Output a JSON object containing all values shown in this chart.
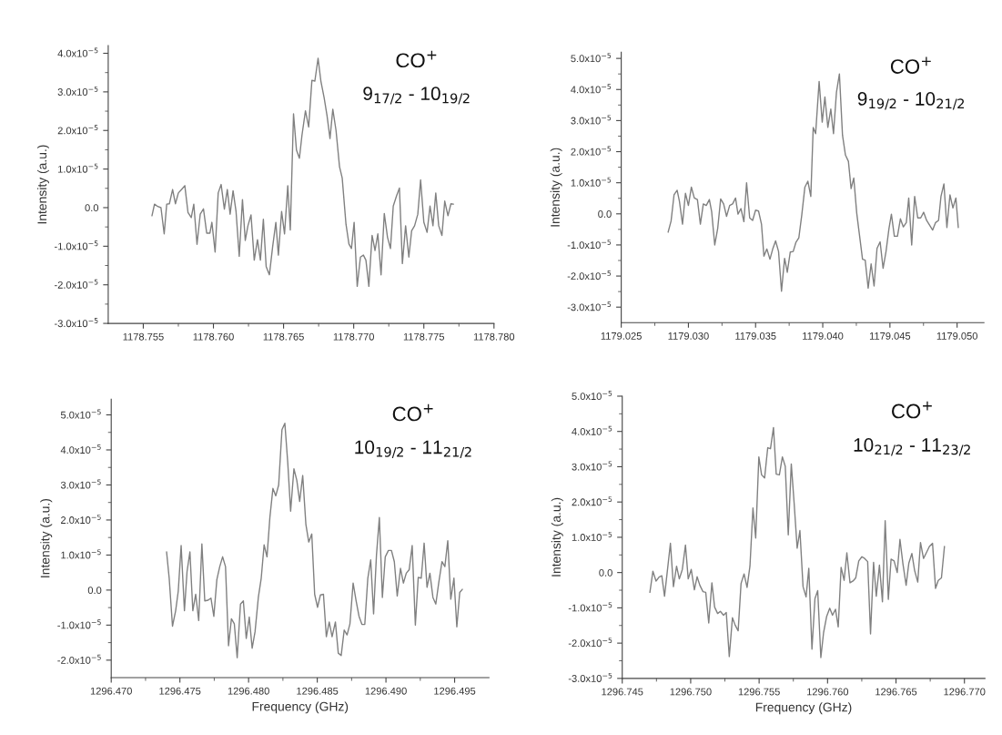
{
  "chart_data": [
    {
      "type": "line",
      "ylabel": "Intensity (a.u.)",
      "annotations": [
        "CO$^{+}$",
        "9$_{17/2}$ - 10$_{19/2}$"
      ],
      "xlim": [
        1178.7525,
        1178.78
      ],
      "xticks": [
        {
          "value": 1178.755,
          "label": "1178.755"
        },
        {
          "value": 1178.76,
          "label": "1178.760"
        },
        {
          "value": 1178.765,
          "label": "1178.765"
        },
        {
          "value": 1178.77,
          "label": "1178.770"
        },
        {
          "value": 1178.775,
          "label": "1178.775"
        },
        {
          "value": 1178.78,
          "label": "1178.780"
        }
      ],
      "ylim": [
        -3e-05,
        4.2e-05
      ],
      "yticks": [
        {
          "value": -3e-05,
          "label": "-3.0x10$^{−5}$"
        },
        {
          "value": -2e-05,
          "label": "-2.0x10$^{−5}$"
        },
        {
          "value": -1e-05,
          "label": "-1.0x10$^{−5}$"
        },
        {
          "value": 0,
          "label": "0.0"
        },
        {
          "value": 1e-05,
          "label": "1.0x10$^{−5}$"
        },
        {
          "value": 2e-05,
          "label": "2.0x10$^{−5}$"
        },
        {
          "value": 3e-05,
          "label": "3.0x10$^{−5}$"
        },
        {
          "value": 4e-05,
          "label": "4.0x10$^{−5}$"
        }
      ],
      "x": [
        1178.75562,
        1178.7558,
        1178.75603,
        1178.75626,
        1178.75649,
        1178.75667,
        1178.75686,
        1178.75709,
        1178.75729,
        1178.7575,
        1178.75773,
        1178.75796,
        1178.75819,
        1178.75842,
        1178.7586,
        1178.75883,
        1178.75906,
        1178.75929,
        1178.75952,
        1178.75975,
        1178.75989,
        1178.76012,
        1178.76034,
        1178.76055,
        1178.76078,
        1178.76099,
        1178.76119,
        1178.7614,
        1178.76161,
        1178.76184,
        1178.76207,
        1178.76227,
        1178.76246,
        1178.76268,
        1178.76291,
        1178.76314,
        1178.76335,
        1178.76356,
        1178.76376,
        1178.76399,
        1178.76422,
        1178.76445,
        1178.76463,
        1178.76486,
        1178.76507,
        1178.7653,
        1178.76548,
        1178.76571,
        1178.76592,
        1178.76613,
        1178.76631,
        1178.76656,
        1178.76679,
        1178.76702,
        1178.76723,
        1178.76746,
        1178.76766,
        1178.76789,
        1178.7681,
        1178.76831,
        1178.76851,
        1178.76874,
        1178.76899,
        1178.76918,
        1178.76945,
        1178.76966,
        1178.76984,
        1178.77003,
        1178.77025,
        1178.77048,
        1178.77069,
        1178.77087,
        1178.77108,
        1178.77131,
        1178.77152,
        1178.77172,
        1178.77195,
        1178.77218,
        1178.77241,
        1178.77262,
        1178.77282,
        1178.77305,
        1178.77326,
        1178.77347,
        1178.7737,
        1178.77393,
        1178.77413,
        1178.77434,
        1178.77457,
        1178.77477,
        1178.775,
        1178.77523,
        1178.77544,
        1178.77565,
        1178.77585,
        1178.77606,
        1178.77629,
        1178.77649,
        1178.77672,
        1178.77693,
        1178.77711
      ],
      "series": [
        {
          "color": "#808080",
          "values": [
            -2.1e-06,
            9e-07,
            3e-07,
            0.0,
            -6.8e-06,
            9e-07,
            1e-06,
            4.7e-06,
            1e-06,
            3.8e-06,
            4.7e-06,
            5.7e-06,
            -1.3e-06,
            -2.6e-06,
            9e-07,
            -9.5e-06,
            -1.7e-06,
            -3e-07,
            -6.6e-06,
            -6.6e-06,
            -3.8e-06,
            -1.15e-05,
            3.8e-06,
            6e-06,
            -4e-07,
            4.7e-06,
            -1.7e-06,
            4.4e-06,
            -9e-07,
            -1.26e-05,
            2.1e-06,
            -8.5e-06,
            -4.7e-06,
            -1.9e-06,
            -1.36e-05,
            -8.3e-06,
            -1.36e-05,
            -3e-06,
            -1.53e-05,
            -1.74e-05,
            -1.02e-05,
            -3.8e-06,
            -1.23e-05,
            -1e-06,
            -6.8e-06,
            5.7e-06,
            -5.8e-06,
            2.43e-05,
            1.49e-05,
            1.28e-05,
            1.87e-05,
            2.51e-05,
            2.09e-05,
            3.3e-05,
            3.28e-05,
            3.87e-05,
            3.28e-05,
            2.85e-05,
            2.38e-05,
            1.79e-05,
            2.55e-05,
            2e-05,
            1.06e-05,
            7.7e-06,
            -4.3e-06,
            -9.4e-06,
            -1.06e-05,
            -3.8e-06,
            -2.04e-05,
            -1.28e-05,
            -1.23e-05,
            -1.36e-05,
            -2.04e-05,
            -7.2e-06,
            -1.11e-05,
            -6.8e-06,
            -1.74e-05,
            -1.5e-06,
            -7.7e-06,
            -1.06e-05,
            4e-07,
            3e-06,
            5.1e-06,
            -1.45e-05,
            -4.7e-06,
            -1.28e-05,
            -6e-06,
            -4.7e-06,
            -1.7e-06,
            7.2e-06,
            -3.8e-06,
            -6.4e-06,
            4e-07,
            -4.7e-06,
            3.8e-06,
            -4.7e-06,
            -7.2e-06,
            1.7e-06,
            -2.1e-06,
            1e-06,
            9e-07
          ]
        }
      ]
    },
    {
      "type": "line",
      "ylabel": "Intensity (a.u.)",
      "annotations": [
        "CO$^{+}$",
        "9$_{19/2}$ - 10$_{21/2}$"
      ],
      "xlim": [
        1179.025,
        1179.052
      ],
      "xticks": [
        {
          "value": 1179.025,
          "label": "1179.025"
        },
        {
          "value": 1179.03,
          "label": "1179.030"
        },
        {
          "value": 1179.035,
          "label": "1179.035"
        },
        {
          "value": 1179.04,
          "label": "1179.040"
        },
        {
          "value": 1179.045,
          "label": "1179.045"
        },
        {
          "value": 1179.05,
          "label": "1179.050"
        }
      ],
      "ylim": [
        -3.5e-05,
        5.2e-05
      ],
      "yticks": [
        {
          "value": -3e-05,
          "label": "-3.0x10$^{−5}$"
        },
        {
          "value": -2e-05,
          "label": "-2.0x10$^{−5}$"
        },
        {
          "value": -1e-05,
          "label": "-1.0x10$^{−5}$"
        },
        {
          "value": 0,
          "label": "0.0"
        },
        {
          "value": 1e-05,
          "label": "1.0x10$^{−5}$"
        },
        {
          "value": 2e-05,
          "label": "2.0x10$^{−5}$"
        },
        {
          "value": 3e-05,
          "label": "3.0x10$^{−5}$"
        },
        {
          "value": 4e-05,
          "label": "4.0x10$^{−5}$"
        },
        {
          "value": 5e-05,
          "label": "5.0x10$^{−5}$"
        }
      ],
      "x": [
        1179.02849,
        1179.02871,
        1179.02893,
        1179.02916,
        1179.02933,
        1179.02956,
        1179.02978,
        1179.03,
        1179.03022,
        1179.03044,
        1179.03067,
        1179.03089,
        1179.03111,
        1179.03133,
        1179.03156,
        1179.03173,
        1179.03196,
        1179.03218,
        1179.0324,
        1179.03262,
        1179.03284,
        1179.03307,
        1179.03329,
        1179.03351,
        1179.03369,
        1179.03391,
        1179.03413,
        1179.03433,
        1179.03456,
        1179.03478,
        1179.035,
        1179.03522,
        1179.03544,
        1179.03562,
        1179.03584,
        1179.03607,
        1179.03629,
        1179.03649,
        1179.03671,
        1179.03693,
        1179.03716,
        1179.03736,
        1179.03758,
        1179.0378,
        1179.038,
        1179.03822,
        1179.03844,
        1179.03867,
        1179.03889,
        1179.03911,
        1179.03929,
        1179.03947,
        1179.03973,
        1179.03996,
        1179.04016,
        1179.04038,
        1179.0406,
        1179.0408,
        1179.04102,
        1179.04124,
        1179.04147,
        1179.04169,
        1179.04191,
        1179.04211,
        1179.04231,
        1179.04253,
        1179.04273,
        1179.04296,
        1179.04316,
        1179.04338,
        1179.0436,
        1179.04382,
        1179.04404,
        1179.04427,
        1179.04449,
        1179.04471,
        1179.04493,
        1179.04511,
        1179.04533,
        1179.04556,
        1179.04578,
        1179.046,
        1179.04622,
        1179.0464,
        1179.04662,
        1179.04684,
        1179.04707,
        1179.04729,
        1179.04751,
        1179.04773,
        1179.04796,
        1179.04818,
        1179.0484,
        1179.04862,
        1179.0488,
        1179.04902,
        1179.04924,
        1179.04947,
        1179.04969,
        1179.04991,
        1179.05009
      ],
      "series": [
        {
          "color": "#808080",
          "values": [
            -5.9e-06,
            -2.3e-06,
            6.1e-06,
            7.6e-06,
            4.1e-06,
            -3.3e-06,
            6.6e-06,
            2.7e-06,
            8.6e-06,
            5.1e-06,
            4.6e-06,
            -3.3e-06,
            3.2e-06,
            2.7e-06,
            4.6e-06,
            7e-07,
            -1e-05,
            -4.7e-06,
            4.8e-06,
            3.2e-06,
            -8e-07,
            2.7e-06,
            3.2e-06,
            5.1e-06,
            -1e-07,
            1.7e-06,
            -2.5e-06,
            1e-05,
            -1.3e-06,
            -2.1e-06,
            1.2e-06,
            9e-07,
            -3.3e-06,
            -1.36e-05,
            -1.13e-05,
            -1.46e-05,
            -1.11e-05,
            -8.7e-06,
            -1.21e-05,
            -2.49e-05,
            -1.43e-05,
            -1.88e-05,
            -1.23e-05,
            -1.21e-05,
            -9.2e-06,
            -7.7e-06,
            -3e-07,
            8.6e-06,
            1.05e-05,
            5.6e-06,
            2.78e-05,
            2.58e-05,
            4.26e-05,
            2.95e-05,
            3.76e-05,
            2.78e-05,
            3.37e-05,
            2.58e-05,
            3.91e-05,
            4.5e-05,
            2.53e-05,
            1.89e-05,
            1.69e-05,
            8.1e-06,
            1.15e-05,
            2e-07,
            -6.7e-06,
            -1.46e-05,
            -1.49e-05,
            -2.39e-05,
            -1.61e-05,
            -2.32e-05,
            -1.11e-05,
            -9e-06,
            -1.75e-05,
            -1.21e-05,
            -4.7e-06,
            -1e-07,
            -7.2e-06,
            -7.2e-06,
            -1.6e-06,
            -4.2e-06,
            -2.8e-06,
            5.1e-06,
            -1e-05,
            5.6e-06,
            -1.3e-06,
            -1.3e-06,
            5e-07,
            -2.1e-06,
            -3.7e-06,
            -5.2e-06,
            -2.8e-06,
            -2.1e-06,
            5.6e-06,
            9.6e-06,
            -4.4e-06,
            6.1e-06,
            1.9e-06,
            5.1e-06,
            -4.4e-06
          ]
        }
      ]
    },
    {
      "type": "line",
      "xlabel": "Frequency (GHz)",
      "ylabel": "Intensity (a.u.)",
      "annotations": [
        "CO$^{+}$",
        "10$_{19/2}$ - 11$_{21/2}$"
      ],
      "xlim": [
        1296.47,
        1296.4975
      ],
      "xticks": [
        {
          "value": 1296.47,
          "label": "1296.470"
        },
        {
          "value": 1296.475,
          "label": "1296.475"
        },
        {
          "value": 1296.48,
          "label": "1296.480"
        },
        {
          "value": 1296.485,
          "label": "1296.485"
        },
        {
          "value": 1296.49,
          "label": "1296.490"
        },
        {
          "value": 1296.495,
          "label": "1296.495"
        }
      ],
      "ylim": [
        -2.5e-05,
        5.45e-05
      ],
      "yticks": [
        {
          "value": -2e-05,
          "label": "-2.0x10$^{−5}$"
        },
        {
          "value": -1e-05,
          "label": "-1.0x10$^{−5}$"
        },
        {
          "value": 0,
          "label": "0.0"
        },
        {
          "value": 1e-05,
          "label": "1.0x10$^{−5}$"
        },
        {
          "value": 2e-05,
          "label": "2.0x10$^{−5}$"
        },
        {
          "value": 3e-05,
          "label": "3.0x10$^{−5}$"
        },
        {
          "value": 4e-05,
          "label": "4.0x10$^{−5}$"
        },
        {
          "value": 5e-05,
          "label": "5.0x10$^{−5}$"
        }
      ],
      "x": [
        1296.47403,
        1296.47422,
        1296.47446,
        1296.47469,
        1296.47488,
        1296.47509,
        1296.47533,
        1296.47552,
        1296.47573,
        1296.47594,
        1296.47615,
        1296.47637,
        1296.4766,
        1296.47681,
        1296.47705,
        1296.47726,
        1296.47747,
        1296.47769,
        1296.4779,
        1296.47811,
        1296.47832,
        1296.47854,
        1296.47875,
        1296.47896,
        1296.47917,
        1296.47941,
        1296.47962,
        1296.47983,
        1296.48005,
        1296.48026,
        1296.48047,
        1296.48071,
        1296.48092,
        1296.48113,
        1296.48134,
        1296.48155,
        1296.48177,
        1296.48198,
        1296.48219,
        1296.48243,
        1296.48264,
        1296.48285,
        1296.48306,
        1296.4833,
        1296.48351,
        1296.48372,
        1296.48394,
        1296.48417,
        1296.48438,
        1296.4846,
        1296.48481,
        1296.48502,
        1296.48523,
        1296.48545,
        1296.48566,
        1296.48587,
        1296.48608,
        1296.48632,
        1296.48653,
        1296.48674,
        1296.48696,
        1296.48717,
        1296.48738,
        1296.48761,
        1296.48783,
        1296.48804,
        1296.48825,
        1296.48846,
        1296.48868,
        1296.48889,
        1296.4891,
        1296.48931,
        1296.48952,
        1296.48974,
        1296.48995,
        1296.49018,
        1296.4904,
        1296.49061,
        1296.49082,
        1296.49106,
        1296.49127,
        1296.49148,
        1296.49169,
        1296.49191,
        1296.49214,
        1296.49235,
        1296.49257,
        1296.49278,
        1296.49299,
        1296.4932,
        1296.49342,
        1296.49363,
        1296.49384,
        1296.49408,
        1296.49429,
        1296.4945,
        1296.49472,
        1296.49495,
        1296.49516,
        1296.49537,
        1296.49556
      ],
      "series": [
        {
          "color": "#808080",
          "values": [
            1.09e-05,
            3.4e-06,
            -1.03e-05,
            -5.9e-06,
            -3e-07,
            1.27e-05,
            -5.9e-06,
            5.3e-06,
            1.09e-05,
            -5.9e-06,
            -1.2e-06,
            -8.7e-06,
            1.32e-05,
            -3.1e-06,
            -2.9e-06,
            -2.3e-06,
            -7.5e-06,
            3e-06,
            6.7e-06,
            9.5e-06,
            6.7e-06,
            -1.59e-05,
            -8.2e-06,
            -9.6e-06,
            -1.93e-05,
            -4e-06,
            -3.1e-06,
            -1.38e-05,
            -7.7e-06,
            -1.66e-05,
            -1.19e-05,
            -2.1e-06,
            3.4e-06,
            1.29e-05,
            9.5e-06,
            2.07e-05,
            2.9e-05,
            2.69e-05,
            3e-05,
            4.58e-05,
            4.76e-05,
            3.65e-05,
            2.25e-05,
            3.46e-05,
            3.13e-05,
            2.53e-05,
            3.27e-05,
            1.88e-05,
            1.37e-05,
            1.6e-05,
            -1.2e-06,
            -4.9e-06,
            -1.4e-06,
            -1.2e-06,
            -1.33e-05,
            -9.1e-06,
            -1.33e-05,
            -9.1e-06,
            -1.8e-05,
            -1.87e-05,
            -1.14e-05,
            -1.28e-05,
            -9.6e-06,
            2e-06,
            -3.1e-06,
            -7.5e-06,
            -9.8e-06,
            -9.8e-06,
            3.4e-06,
            8.6e-06,
            -6.8e-06,
            1e-05,
            2.07e-05,
            -2.1e-06,
            9.5e-06,
            1.13e-05,
            1.13e-05,
            8.1e-06,
            -1.7e-06,
            6.2e-06,
            2e-06,
            4.8e-06,
            5.8e-06,
            1.27e-05,
            -1e-05,
            3.6e-06,
            3.4e-06,
            1.34e-05,
            8e-07,
            4.8e-06,
            -2.1e-06,
            -4e-06,
            2e-06,
            8.1e-06,
            6.7e-06,
            1.41e-05,
            -2.6e-06,
            3.4e-06,
            -1.05e-05,
            -7e-07,
            2e-07
          ]
        }
      ]
    },
    {
      "type": "line",
      "xlabel": "Frequency (GHz)",
      "ylabel": "Intensity (a.u.)",
      "annotations": [
        "CO$^{+}$",
        "10$_{21/2}$ - 11$_{23/2}$"
      ],
      "xlim": [
        1296.745,
        1296.7715
      ],
      "xticks": [
        {
          "value": 1296.745,
          "label": "1296.745"
        },
        {
          "value": 1296.75,
          "label": "1296.750"
        },
        {
          "value": 1296.755,
          "label": "1296.755"
        },
        {
          "value": 1296.76,
          "label": "1296.760"
        },
        {
          "value": 1296.765,
          "label": "1296.765"
        },
        {
          "value": 1296.77,
          "label": "1296.770"
        }
      ],
      "ylim": [
        -3e-05,
        5e-05
      ],
      "yticks": [
        {
          "value": -3e-05,
          "label": "-3.0x10$^{−5}$"
        },
        {
          "value": -2e-05,
          "label": "-2.0x10$^{−5}$"
        },
        {
          "value": -1e-05,
          "label": "-1.0x10$^{−5}$"
        },
        {
          "value": 0,
          "label": "0.0"
        },
        {
          "value": 1e-05,
          "label": "1.0x10$^{−5}$"
        },
        {
          "value": 2e-05,
          "label": "2.0x10$^{−5}$"
        },
        {
          "value": 3e-05,
          "label": "3.0x10$^{−5}$"
        },
        {
          "value": 4e-05,
          "label": "4.0x10$^{−5}$"
        },
        {
          "value": 5e-05,
          "label": "5.0x10$^{−5}$"
        }
      ],
      "x": [
        1296.74702,
        1296.74724,
        1296.74747,
        1296.74769,
        1296.74789,
        1296.74809,
        1296.74832,
        1296.74852,
        1296.74874,
        1296.74897,
        1296.74917,
        1296.74939,
        1296.74962,
        1296.74982,
        1296.75004,
        1296.75027,
        1296.75047,
        1296.75067,
        1296.7509,
        1296.7511,
        1296.75132,
        1296.75155,
        1296.75175,
        1296.75197,
        1296.75217,
        1296.7524,
        1296.7526,
        1296.75282,
        1296.75305,
        1296.75325,
        1296.75347,
        1296.75368,
        1296.7539,
        1296.75412,
        1296.75433,
        1296.75455,
        1296.75475,
        1296.75498,
        1296.75518,
        1296.7554,
        1296.75563,
        1296.75583,
        1296.75605,
        1296.75625,
        1296.75648,
        1296.7567,
        1296.75691,
        1296.75713,
        1296.75735,
        1296.75756,
        1296.75778,
        1296.75798,
        1296.75821,
        1296.75843,
        1296.75863,
        1296.75886,
        1296.75908,
        1296.75928,
        1296.75951,
        1296.75971,
        1296.75993,
        1296.76016,
        1296.76036,
        1296.76058,
        1296.76078,
        1296.76099,
        1296.76121,
        1296.76141,
        1296.76164,
        1296.76186,
        1296.76206,
        1296.76228,
        1296.76251,
        1296.76271,
        1296.76293,
        1296.76314,
        1296.76336,
        1296.76356,
        1296.76379,
        1296.76401,
        1296.76421,
        1296.76444,
        1296.76464,
        1296.76486,
        1296.76509,
        1296.76529,
        1296.76551,
        1296.76574,
        1296.76594,
        1296.76616,
        1296.76636,
        1296.76659,
        1296.76679,
        1296.76701,
        1296.76724,
        1296.76744,
        1296.76767,
        1296.76789,
        1296.76809,
        1296.76832,
        1296.76854
      ],
      "series": [
        {
          "color": "#808080",
          "values": [
            -5.6e-06,
            4e-07,
            -2.4e-06,
            -1.3e-06,
            -9e-07,
            -6.7e-06,
            1.3e-06,
            8.3e-06,
            -4e-06,
            1.8e-06,
            -1.8e-06,
            9e-07,
            7.8e-06,
            -1.8e-06,
            9e-07,
            -4.9e-06,
            -1.2e-06,
            -3.6e-06,
            -5.4e-06,
            -5.6e-06,
            -1.43e-05,
            -2.9e-06,
            -9.8e-06,
            -1.16e-05,
            -1.1e-05,
            -1.21e-05,
            -1.13e-05,
            -2.38e-05,
            -1.28e-05,
            -1.49e-05,
            -1.65e-05,
            -3.1e-06,
            -4e-07,
            -4.2e-06,
            1.8e-06,
            1.83e-05,
            9.8e-06,
            3.28e-05,
            2.77e-05,
            2.68e-05,
            3.54e-05,
            3.51e-05,
            4.11e-05,
            2.79e-05,
            2.77e-05,
            3.28e-05,
            3.01e-05,
            1.07e-05,
            3.08e-05,
            1.96e-05,
            6.9e-06,
            1.19e-05,
            -4e-06,
            -6.9e-06,
            1.2e-06,
            -2.17e-05,
            -7.4e-06,
            -5.1e-06,
            -2.41e-05,
            -1.7e-05,
            -1.25e-05,
            -1.01e-05,
            -1.21e-05,
            -1.04e-05,
            -1.54e-05,
            1.5e-06,
            -2.2e-06,
            5.6e-06,
            -2.9e-06,
            -2.4e-06,
            -1.5e-06,
            3.3e-06,
            4.5e-06,
            4e-06,
            3.1e-06,
            -1.74e-05,
            2.9e-06,
            -6.7e-06,
            2.1e-06,
            -8.3e-06,
            1.47e-05,
            -7.6e-06,
            3.8e-06,
            3.3e-06,
            0.0,
            9.4e-06,
            2.4e-06,
            -3.6e-06,
            2.7e-06,
            5.4e-06,
            6e-07,
            -2.7e-06,
            8.5e-06,
            4e-06,
            5.8e-06,
            7.4e-06,
            8.3e-06,
            -4.5e-06,
            -2.2e-06,
            -1.5e-06,
            7.4e-06
          ]
        }
      ]
    }
  ]
}
